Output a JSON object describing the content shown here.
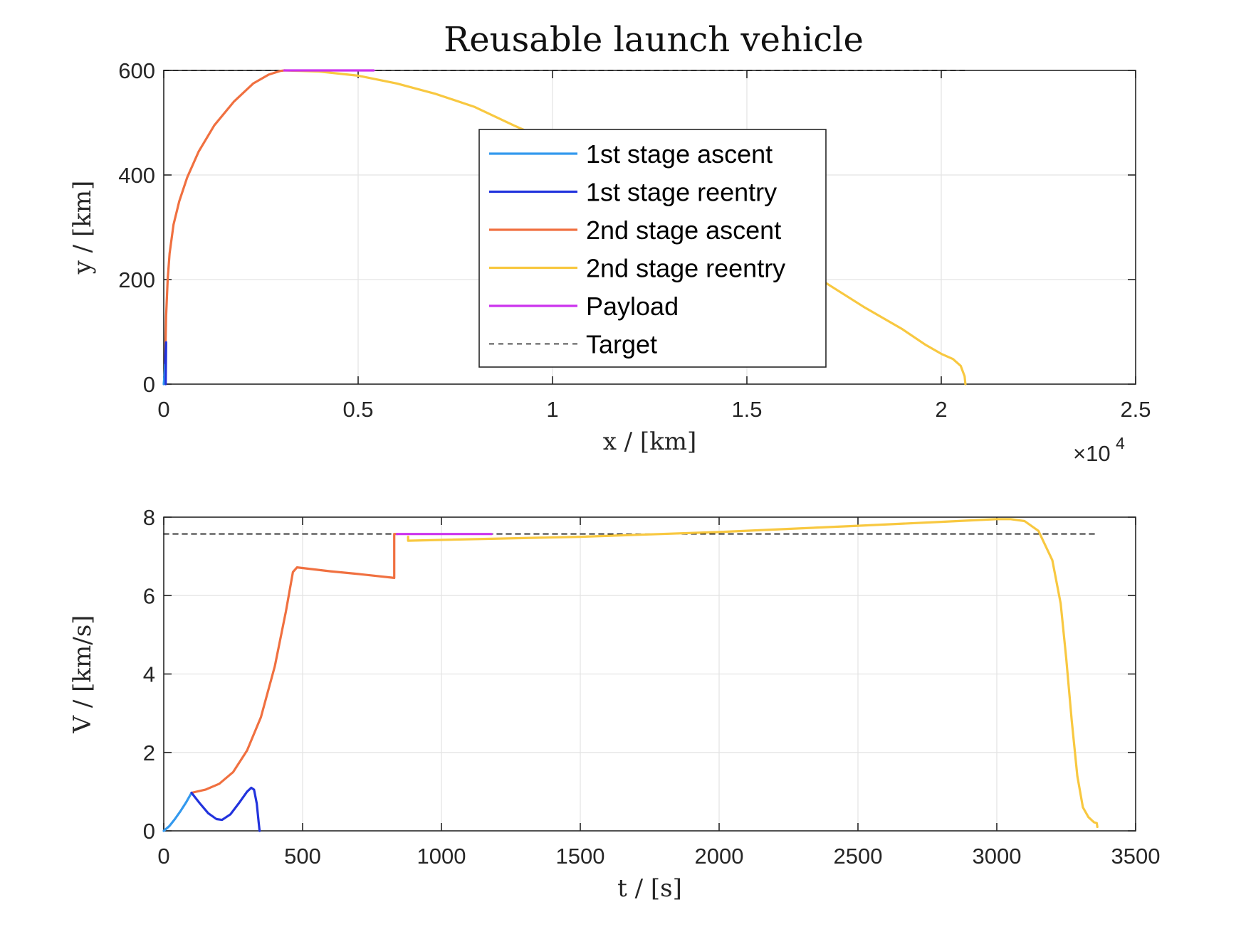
{
  "title": "Reusable launch vehicle",
  "colors": {
    "1st stage ascent": "#3399ee",
    "1st stage reentry": "#2233dd",
    "2nd stage ascent": "#f07040",
    "2nd stage reentry": "#f8c840",
    "Payload": "#cc33ee",
    "Target": "#111111"
  },
  "chart_data": [
    {
      "type": "line",
      "xlabel": "x / [km]",
      "ylabel": "y / [km]",
      "xlim": [
        0,
        25000
      ],
      "ylim": [
        0,
        600
      ],
      "x_ticks": [
        0,
        5000,
        10000,
        15000,
        20000,
        25000
      ],
      "x_tick_labels": [
        "0",
        "0.5",
        "1",
        "1.5",
        "2",
        "2.5"
      ],
      "x_exponent_label": "×10",
      "x_exponent": "4",
      "y_ticks": [
        0,
        200,
        400,
        600
      ],
      "y_tick_labels": [
        "0",
        "200",
        "400",
        "600"
      ],
      "grid": true,
      "legend_position": "center",
      "series": [
        {
          "name": "1st stage ascent",
          "x": [
            0,
            10,
            20,
            30,
            35
          ],
          "y": [
            0,
            8,
            18,
            30,
            40
          ]
        },
        {
          "name": "1st stage reentry",
          "x": [
            35,
            45,
            55,
            60,
            55,
            50
          ],
          "y": [
            40,
            60,
            75,
            80,
            40,
            0
          ]
        },
        {
          "name": "2nd stage ascent",
          "x": [
            35,
            60,
            100,
            150,
            250,
            400,
            600,
            900,
            1300,
            1800,
            2300,
            2700,
            3000,
            3100
          ],
          "y": [
            40,
            130,
            200,
            250,
            305,
            350,
            395,
            445,
            495,
            540,
            575,
            592,
            599,
            600
          ]
        },
        {
          "name": "2nd stage reentry",
          "x": [
            3100,
            4000,
            5000,
            6000,
            7000,
            8000,
            9000,
            10000,
            11000,
            12000,
            13000,
            14000,
            15000,
            16000,
            17000,
            18000,
            19000,
            19600,
            20000,
            20300,
            20500,
            20600,
            20620
          ],
          "y": [
            600,
            598,
            590,
            575,
            555,
            530,
            495,
            462,
            428,
            392,
            355,
            318,
            280,
            238,
            195,
            148,
            105,
            75,
            58,
            48,
            35,
            15,
            0
          ]
        },
        {
          "name": "Payload",
          "x": [
            3100,
            5400
          ],
          "y": [
            600,
            600
          ]
        },
        {
          "name": "Target",
          "x": [
            0,
            20600
          ],
          "y": [
            600,
            600
          ],
          "style": "dashed"
        }
      ]
    },
    {
      "type": "line",
      "xlabel": "t / [s]",
      "ylabel": "V / [km/s]",
      "xlim": [
        0,
        3500
      ],
      "ylim": [
        0,
        8
      ],
      "x_ticks": [
        0,
        500,
        1000,
        1500,
        2000,
        2500,
        3000,
        3500
      ],
      "x_tick_labels": [
        "0",
        "500",
        "1000",
        "1500",
        "2000",
        "2500",
        "3000",
        "3500"
      ],
      "y_ticks": [
        0,
        2,
        4,
        6,
        8
      ],
      "y_tick_labels": [
        "0",
        "2",
        "4",
        "6",
        "8"
      ],
      "grid": true,
      "series": [
        {
          "name": "1st stage ascent",
          "x": [
            0,
            20,
            40,
            60,
            80,
            100
          ],
          "y": [
            0,
            0.12,
            0.3,
            0.5,
            0.72,
            0.97
          ]
        },
        {
          "name": "1st stage reentry",
          "x": [
            100,
            130,
            160,
            190,
            210,
            240,
            270,
            300,
            315,
            325,
            335,
            342,
            345
          ],
          "y": [
            0.97,
            0.7,
            0.45,
            0.3,
            0.28,
            0.42,
            0.7,
            1.0,
            1.1,
            1.05,
            0.7,
            0.2,
            0
          ]
        },
        {
          "name": "2nd stage ascent",
          "x": [
            100,
            150,
            200,
            250,
            300,
            350,
            400,
            440,
            465,
            480,
            600,
            700,
            830,
            830,
            840
          ],
          "y": [
            0.97,
            1.05,
            1.2,
            1.5,
            2.05,
            2.9,
            4.2,
            5.6,
            6.6,
            6.72,
            6.62,
            6.55,
            6.45,
            7.57,
            7.57
          ]
        },
        {
          "name": "2nd stage reentry",
          "x": [
            880,
            880,
            1000,
            1500,
            2000,
            2500,
            2800,
            3000,
            3050,
            3100,
            3150,
            3200,
            3230,
            3250,
            3270,
            3290,
            3310,
            3330,
            3350,
            3360,
            3362
          ],
          "y": [
            7.5,
            7.4,
            7.42,
            7.5,
            7.62,
            7.78,
            7.88,
            7.95,
            7.95,
            7.9,
            7.65,
            6.9,
            5.8,
            4.4,
            2.8,
            1.4,
            0.6,
            0.35,
            0.22,
            0.2,
            0.1
          ]
        },
        {
          "name": "Payload",
          "x": [
            840,
            1180
          ],
          "y": [
            7.57,
            7.57
          ]
        },
        {
          "name": "Target",
          "x": [
            0,
            3360
          ],
          "y": [
            7.57,
            7.57
          ],
          "style": "dashed"
        }
      ]
    }
  ]
}
